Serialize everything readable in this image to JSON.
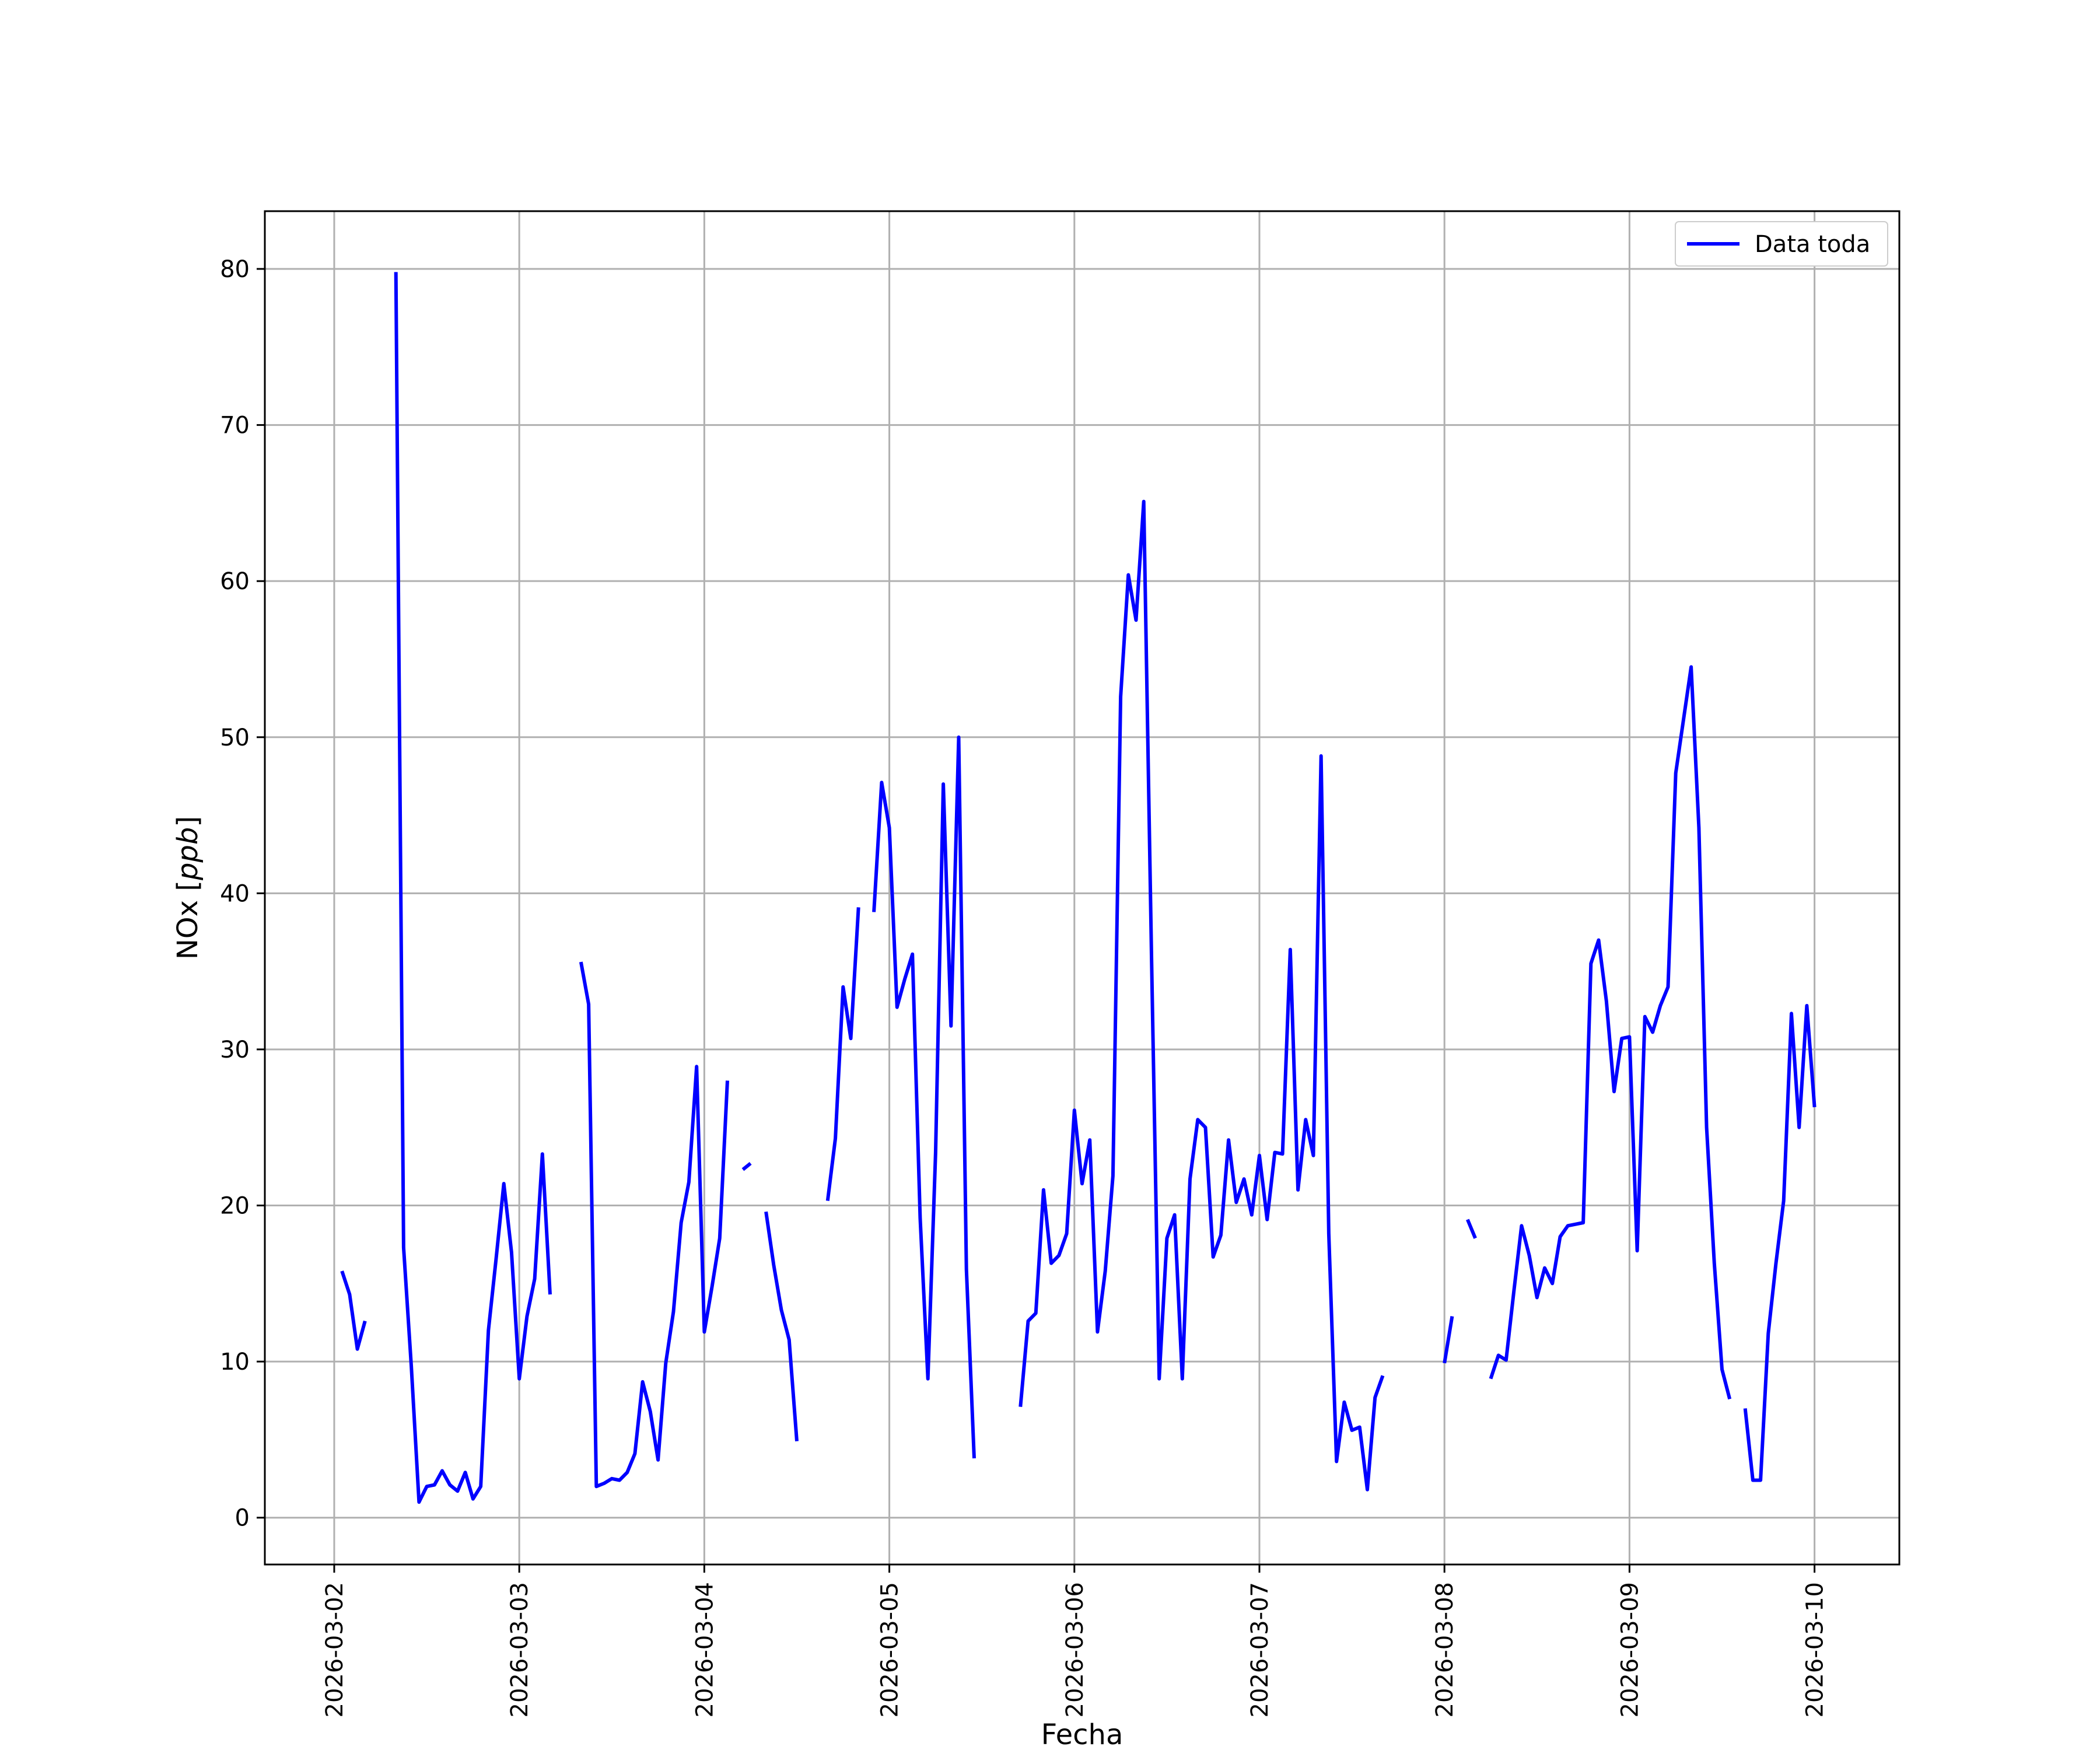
{
  "chart_data": {
    "type": "line",
    "title": "",
    "xlabel": "Fecha",
    "ylabel": "NOx [ppb]",
    "ylabel_parts": {
      "main": "NOx [",
      "unit": "ppb",
      "close": "]"
    },
    "xlim": [
      "2026-03-01T15:00",
      "2026-03-10T11:00"
    ],
    "ylim": [
      -3,
      83.7
    ],
    "x_ticks": [
      "2026-03-02",
      "2026-03-03",
      "2026-03-04",
      "2026-03-05",
      "2026-03-06",
      "2026-03-07",
      "2026-03-08",
      "2026-03-09",
      "2026-03-10"
    ],
    "y_ticks": [
      0,
      10,
      20,
      30,
      40,
      50,
      60,
      70,
      80
    ],
    "grid": true,
    "legend_position": "top-right",
    "colors": {
      "series": "#0000ff",
      "grid": "#b0b0b0",
      "frame": "#000000"
    },
    "series": [
      {
        "name": "Data toda",
        "segments": [
          [
            [
              "2026-03-02T01:00",
              15.8
            ],
            [
              "2026-03-02T02:00",
              14.3
            ],
            [
              "2026-03-02T03:00",
              10.8
            ],
            [
              "2026-03-02T04:00",
              12.6
            ]
          ],
          [
            [
              "2026-03-02T08:00",
              79.8
            ],
            [
              "2026-03-02T09:00",
              17.3
            ],
            [
              "2026-03-02T10:00",
              9.7
            ],
            [
              "2026-03-02T11:00",
              1.0
            ],
            [
              "2026-03-02T12:00",
              2.0
            ],
            [
              "2026-03-02T13:00",
              2.1
            ],
            [
              "2026-03-02T14:00",
              3.0
            ],
            [
              "2026-03-02T15:00",
              2.1
            ],
            [
              "2026-03-02T16:00",
              1.7
            ],
            [
              "2026-03-02T17:00",
              2.9
            ],
            [
              "2026-03-02T18:00",
              1.2
            ],
            [
              "2026-03-02T19:00",
              2.0
            ],
            [
              "2026-03-02T20:00",
              12.0
            ],
            [
              "2026-03-02T21:00",
              16.6
            ],
            [
              "2026-03-02T22:00",
              21.4
            ],
            [
              "2026-03-02T23:00",
              17.0
            ],
            [
              "2026-03-03T00:00",
              8.9
            ],
            [
              "2026-03-03T01:00",
              12.9
            ],
            [
              "2026-03-03T02:00",
              15.3
            ],
            [
              "2026-03-03T03:00",
              23.3
            ],
            [
              "2026-03-03T04:00",
              14.3
            ]
          ],
          [
            [
              "2026-03-03T08:00",
              35.6
            ],
            [
              "2026-03-03T09:00",
              32.9
            ],
            [
              "2026-03-03T10:00",
              2.0
            ],
            [
              "2026-03-03T11:00",
              2.2
            ],
            [
              "2026-03-03T12:00",
              2.5
            ],
            [
              "2026-03-03T13:00",
              2.4
            ],
            [
              "2026-03-03T14:00",
              2.9
            ],
            [
              "2026-03-03T15:00",
              4.1
            ],
            [
              "2026-03-03T16:00",
              8.7
            ],
            [
              "2026-03-03T17:00",
              6.8
            ],
            [
              "2026-03-03T18:00",
              3.7
            ],
            [
              "2026-03-03T19:00",
              9.9
            ],
            [
              "2026-03-03T20:00",
              13.2
            ],
            [
              "2026-03-03T21:00",
              18.9
            ],
            [
              "2026-03-03T22:00",
              21.5
            ],
            [
              "2026-03-03T23:00",
              28.9
            ],
            [
              "2026-03-04T00:00",
              11.9
            ],
            [
              "2026-03-04T01:00",
              14.8
            ],
            [
              "2026-03-04T02:00",
              17.9
            ],
            [
              "2026-03-04T03:00",
              28.0
            ]
          ],
          [
            [
              "2026-03-04T05:00",
              22.3
            ],
            [
              "2026-03-04T06:00",
              22.7
            ]
          ],
          [
            [
              "2026-03-04T08:00",
              19.6
            ],
            [
              "2026-03-04T09:00",
              16.2
            ],
            [
              "2026-03-04T10:00",
              13.3
            ],
            [
              "2026-03-04T11:00",
              11.4
            ],
            [
              "2026-03-04T12:00",
              4.9
            ]
          ],
          [
            [
              "2026-03-04T16:00",
              20.3
            ],
            [
              "2026-03-04T17:00",
              24.3
            ],
            [
              "2026-03-04T18:00",
              34.0
            ],
            [
              "2026-03-04T19:00",
              30.7
            ],
            [
              "2026-03-04T20:00",
              39.1
            ]
          ],
          [
            [
              "2026-03-04T22:00",
              38.8
            ],
            [
              "2026-03-04T23:00",
              47.1
            ],
            [
              "2026-03-05T00:00",
              44.2
            ],
            [
              "2026-03-05T01:00",
              32.7
            ],
            [
              "2026-03-05T02:00",
              34.5
            ],
            [
              "2026-03-05T03:00",
              36.1
            ],
            [
              "2026-03-05T04:00",
              19.2
            ],
            [
              "2026-03-05T05:00",
              8.9
            ],
            [
              "2026-03-05T06:00",
              23.4
            ],
            [
              "2026-03-05T07:00",
              47.0
            ],
            [
              "2026-03-05T08:00",
              31.5
            ],
            [
              "2026-03-05T09:00",
              50.0
            ],
            [
              "2026-03-05T10:00",
              15.9
            ],
            [
              "2026-03-05T11:00",
              3.8
            ]
          ],
          [
            [
              "2026-03-05T17:00",
              7.1
            ],
            [
              "2026-03-05T18:00",
              12.6
            ],
            [
              "2026-03-05T19:00",
              13.1
            ],
            [
              "2026-03-05T20:00",
              21.0
            ],
            [
              "2026-03-05T21:00",
              16.3
            ],
            [
              "2026-03-05T22:00",
              16.8
            ],
            [
              "2026-03-05T23:00",
              18.2
            ],
            [
              "2026-03-06T00:00",
              26.1
            ],
            [
              "2026-03-06T01:00",
              21.4
            ],
            [
              "2026-03-06T02:00",
              24.2
            ],
            [
              "2026-03-06T03:00",
              11.9
            ],
            [
              "2026-03-06T04:00",
              15.8
            ],
            [
              "2026-03-06T05:00",
              21.9
            ],
            [
              "2026-03-06T06:00",
              52.6
            ],
            [
              "2026-03-06T07:00",
              60.4
            ],
            [
              "2026-03-06T08:00",
              57.5
            ],
            [
              "2026-03-06T09:00",
              65.1
            ],
            [
              "2026-03-06T10:00",
              36.0
            ],
            [
              "2026-03-06T11:00",
              8.9
            ],
            [
              "2026-03-06T12:00",
              17.9
            ],
            [
              "2026-03-06T13:00",
              19.4
            ],
            [
              "2026-03-06T14:00",
              8.9
            ],
            [
              "2026-03-06T15:00",
              21.7
            ],
            [
              "2026-03-06T16:00",
              25.5
            ],
            [
              "2026-03-06T17:00",
              25.0
            ],
            [
              "2026-03-06T18:00",
              16.7
            ],
            [
              "2026-03-06T19:00",
              18.1
            ],
            [
              "2026-03-06T20:00",
              24.2
            ],
            [
              "2026-03-06T21:00",
              20.2
            ],
            [
              "2026-03-06T22:00",
              21.7
            ],
            [
              "2026-03-06T23:00",
              19.4
            ],
            [
              "2026-03-07T00:00",
              23.2
            ],
            [
              "2026-03-07T01:00",
              19.1
            ],
            [
              "2026-03-07T02:00",
              23.4
            ],
            [
              "2026-03-07T03:00",
              23.3
            ],
            [
              "2026-03-07T04:00",
              36.4
            ],
            [
              "2026-03-07T05:00",
              21.0
            ],
            [
              "2026-03-07T06:00",
              25.5
            ],
            [
              "2026-03-07T07:00",
              23.2
            ],
            [
              "2026-03-07T08:00",
              48.8
            ],
            [
              "2026-03-07T09:00",
              18.2
            ],
            [
              "2026-03-07T10:00",
              3.6
            ],
            [
              "2026-03-07T11:00",
              7.4
            ],
            [
              "2026-03-07T12:00",
              5.6
            ],
            [
              "2026-03-07T13:00",
              5.8
            ],
            [
              "2026-03-07T14:00",
              1.8
            ],
            [
              "2026-03-07T15:00",
              7.7
            ],
            [
              "2026-03-07T16:00",
              9.1
            ]
          ],
          [
            [
              "2026-03-08T00:00",
              9.9
            ],
            [
              "2026-03-08T01:00",
              12.9
            ]
          ],
          [
            [
              "2026-03-08T03:00",
              19.1
            ],
            [
              "2026-03-08T04:00",
              17.9
            ]
          ],
          [
            [
              "2026-03-08T06:00",
              8.9
            ],
            [
              "2026-03-08T07:00",
              10.4
            ],
            [
              "2026-03-08T08:00",
              10.1
            ],
            [
              "2026-03-08T09:00",
              14.5
            ],
            [
              "2026-03-08T10:00",
              18.7
            ],
            [
              "2026-03-08T11:00",
              16.8
            ],
            [
              "2026-03-08T12:00",
              14.1
            ],
            [
              "2026-03-08T13:00",
              16.0
            ],
            [
              "2026-03-08T14:00",
              15.0
            ],
            [
              "2026-03-08T15:00",
              18.0
            ],
            [
              "2026-03-08T16:00",
              18.7
            ],
            [
              "2026-03-08T17:00",
              18.8
            ],
            [
              "2026-03-08T18:00",
              18.9
            ],
            [
              "2026-03-08T19:00",
              35.5
            ],
            [
              "2026-03-08T20:00",
              37.0
            ],
            [
              "2026-03-08T21:00",
              33.1
            ],
            [
              "2026-03-08T22:00",
              27.3
            ],
            [
              "2026-03-08T23:00",
              30.7
            ],
            [
              "2026-03-09T00:00",
              30.8
            ],
            [
              "2026-03-09T01:00",
              17.1
            ],
            [
              "2026-03-09T02:00",
              32.1
            ],
            [
              "2026-03-09T03:00",
              31.1
            ],
            [
              "2026-03-09T04:00",
              32.8
            ],
            [
              "2026-03-09T05:00",
              34.0
            ],
            [
              "2026-03-09T06:00",
              47.7
            ],
            [
              "2026-03-09T07:00",
              51.1
            ],
            [
              "2026-03-09T08:00",
              54.5
            ],
            [
              "2026-03-09T09:00",
              44.2
            ],
            [
              "2026-03-09T10:00",
              25.0
            ],
            [
              "2026-03-09T11:00",
              16.3
            ],
            [
              "2026-03-09T12:00",
              9.5
            ],
            [
              "2026-03-09T13:00",
              7.6
            ]
          ],
          [
            [
              "2026-03-09T15:00",
              7.0
            ],
            [
              "2026-03-09T16:00",
              2.4
            ],
            [
              "2026-03-09T17:00",
              2.4
            ],
            [
              "2026-03-09T18:00",
              11.8
            ],
            [
              "2026-03-09T19:00",
              16.3
            ],
            [
              "2026-03-09T20:00",
              20.3
            ],
            [
              "2026-03-09T21:00",
              32.3
            ],
            [
              "2026-03-09T22:00",
              25.0
            ],
            [
              "2026-03-09T23:00",
              32.8
            ],
            [
              "2026-03-10T00:00",
              26.3
            ]
          ]
        ]
      }
    ]
  }
}
